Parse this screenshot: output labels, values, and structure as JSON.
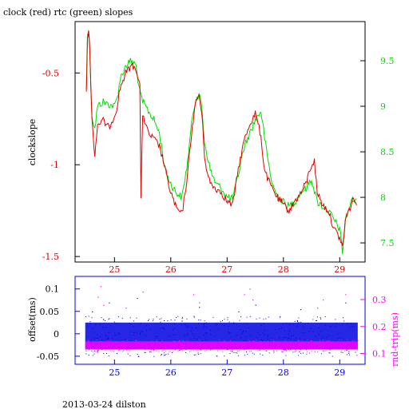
{
  "title": "clock (red) rtc (green) slopes",
  "footer": "2013-03-24 dilston",
  "colors": {
    "red": "#e00000",
    "green": "#00dd00",
    "blue": "#0000e0",
    "magenta": "#ff00ff",
    "black": "#000000"
  },
  "chart_data": [
    {
      "type": "line",
      "title": "clock (red) rtc (green) slopes",
      "ylabel": "clockslope",
      "xlim": [
        24.3,
        29.45
      ],
      "ylim": [
        -1.53,
        -0.22
      ],
      "y2lim": [
        7.29,
        9.93
      ],
      "x_ticks": [
        25,
        26,
        27,
        28,
        29
      ],
      "y_ticks": [
        -0.5,
        -1,
        -1.5
      ],
      "y_tick_labels": [
        "-0.5",
        "-1",
        "-1.5"
      ],
      "y2_ticks": [
        7.5,
        8,
        8.5,
        9,
        9.5
      ],
      "y2_tick_labels": [
        "7.5",
        "8",
        "8.5",
        "9",
        "9.5"
      ],
      "grid": false,
      "series": [
        {
          "name": "clock",
          "color": "#e00000",
          "axis": "left",
          "x": [
            24.5,
            24.52,
            24.54,
            24.56,
            24.6,
            24.65,
            24.7,
            24.8,
            24.9,
            25.0,
            25.05,
            25.1,
            25.2,
            25.3,
            25.38,
            25.45,
            25.47,
            25.5,
            25.6,
            25.7,
            25.8,
            25.9,
            25.95,
            26.0,
            26.1,
            26.2,
            26.3,
            26.35,
            26.4,
            26.45,
            26.5,
            26.55,
            26.6,
            26.65,
            26.7,
            26.8,
            26.9,
            27.0,
            27.1,
            27.2,
            27.3,
            27.4,
            27.5,
            27.6,
            27.65,
            27.7,
            27.8,
            27.9,
            28.0,
            28.1,
            28.2,
            28.3,
            28.4,
            28.5,
            28.55,
            28.6,
            28.7,
            28.8,
            28.9,
            29.0,
            29.05,
            29.1,
            29.2,
            29.25,
            29.3
          ],
          "y": [
            -0.62,
            -0.3,
            -0.28,
            -0.35,
            -0.75,
            -0.95,
            -0.78,
            -0.76,
            -0.8,
            -0.73,
            -0.68,
            -0.58,
            -0.5,
            -0.46,
            -0.47,
            -0.57,
            -1.2,
            -0.72,
            -0.83,
            -0.86,
            -0.9,
            -1.02,
            -1.1,
            -1.15,
            -1.24,
            -1.27,
            -1.05,
            -0.88,
            -0.75,
            -0.65,
            -0.62,
            -0.72,
            -0.95,
            -1.05,
            -1.1,
            -1.13,
            -1.15,
            -1.2,
            -1.22,
            -1.02,
            -0.87,
            -0.78,
            -0.72,
            -0.84,
            -1.0,
            -1.06,
            -1.13,
            -1.18,
            -1.22,
            -1.25,
            -1.2,
            -1.16,
            -1.1,
            -1.0,
            -0.98,
            -1.15,
            -1.22,
            -1.25,
            -1.35,
            -1.4,
            -1.45,
            -1.3,
            -1.22,
            -1.18,
            -1.22
          ]
        },
        {
          "name": "rtc",
          "color": "#00dd00",
          "axis": "right",
          "x": [
            24.5,
            24.52,
            24.54,
            24.56,
            24.6,
            24.65,
            24.7,
            24.8,
            24.9,
            25.0,
            25.05,
            25.1,
            25.2,
            25.3,
            25.38,
            25.45,
            25.5,
            25.6,
            25.7,
            25.8,
            25.9,
            26.0,
            26.1,
            26.2,
            26.3,
            26.35,
            26.4,
            26.45,
            26.5,
            26.55,
            26.6,
            26.7,
            26.8,
            26.9,
            27.0,
            27.1,
            27.2,
            27.3,
            27.4,
            27.5,
            27.6,
            27.7,
            27.8,
            27.9,
            28.0,
            28.1,
            28.2,
            28.3,
            28.4,
            28.5,
            28.6,
            28.7,
            28.8,
            28.9,
            29.0,
            29.05,
            29.1,
            29.2,
            29.3
          ],
          "y": [
            9.2,
            9.8,
            9.85,
            9.6,
            8.9,
            8.75,
            9.0,
            9.05,
            9.02,
            9.0,
            9.1,
            9.3,
            9.45,
            9.5,
            9.45,
            9.15,
            9.05,
            8.95,
            8.85,
            8.7,
            8.3,
            8.15,
            8.05,
            8.0,
            8.4,
            8.7,
            8.95,
            9.1,
            9.12,
            9.0,
            8.6,
            8.3,
            8.15,
            8.1,
            8.0,
            7.98,
            8.25,
            8.55,
            8.7,
            8.85,
            8.95,
            8.5,
            8.15,
            8.0,
            7.95,
            7.9,
            7.95,
            8.05,
            8.1,
            8.2,
            7.95,
            7.9,
            7.85,
            7.75,
            7.65,
            7.4,
            7.75,
            7.95,
            7.98
          ]
        }
      ]
    },
    {
      "type": "scatter",
      "ylabel": "offset(ms)",
      "y2label": "rnd-trip(ms)",
      "xlim": [
        24.3,
        29.45
      ],
      "ylim": [
        -0.068,
        0.128
      ],
      "y2lim": [
        0.06,
        0.386
      ],
      "x_ticks": [
        25,
        26,
        27,
        28,
        29
      ],
      "x_tick_labels": [
        "25",
        "26",
        "27",
        "28",
        "29"
      ],
      "y_ticks": [
        0.1,
        0.05,
        0,
        -0.05
      ],
      "y_tick_labels": [
        "0.1",
        "0.05",
        "0",
        "-0.05"
      ],
      "y2_ticks": [
        0.1,
        0.2,
        0.3
      ],
      "y2_tick_labels": [
        "0.1",
        "0.2",
        "0.3"
      ],
      "grid": false,
      "series": [
        {
          "name": "offset",
          "color": "#0000e0",
          "axis": "left",
          "x_range": [
            24.48,
            29.32
          ],
          "y_band": [
            -0.035,
            0.025
          ],
          "outliers": [
            [
              24.6,
              0.05
            ],
            [
              24.9,
              0.07
            ],
            [
              25.4,
              0.08
            ],
            [
              26.5,
              0.06
            ],
            [
              27.2,
              0.05
            ],
            [
              27.5,
              0.065
            ],
            [
              28.3,
              0.055
            ],
            [
              29.1,
              0.07
            ]
          ]
        },
        {
          "name": "rnd-trip",
          "color": "#ff00ff",
          "axis": "right",
          "x_range": [
            24.48,
            29.32
          ],
          "y_band": [
            0.115,
            0.145
          ],
          "outliers": [
            [
              24.7,
              0.31
            ],
            [
              24.75,
              0.35
            ],
            [
              24.8,
              0.28
            ],
            [
              25.2,
              0.27
            ],
            [
              25.5,
              0.33
            ],
            [
              26.4,
              0.32
            ],
            [
              26.5,
              0.29
            ],
            [
              27.3,
              0.32
            ],
            [
              27.4,
              0.34
            ],
            [
              27.45,
              0.3
            ],
            [
              28.6,
              0.27
            ],
            [
              28.7,
              0.3
            ],
            [
              29.1,
              0.32
            ]
          ]
        }
      ]
    }
  ]
}
